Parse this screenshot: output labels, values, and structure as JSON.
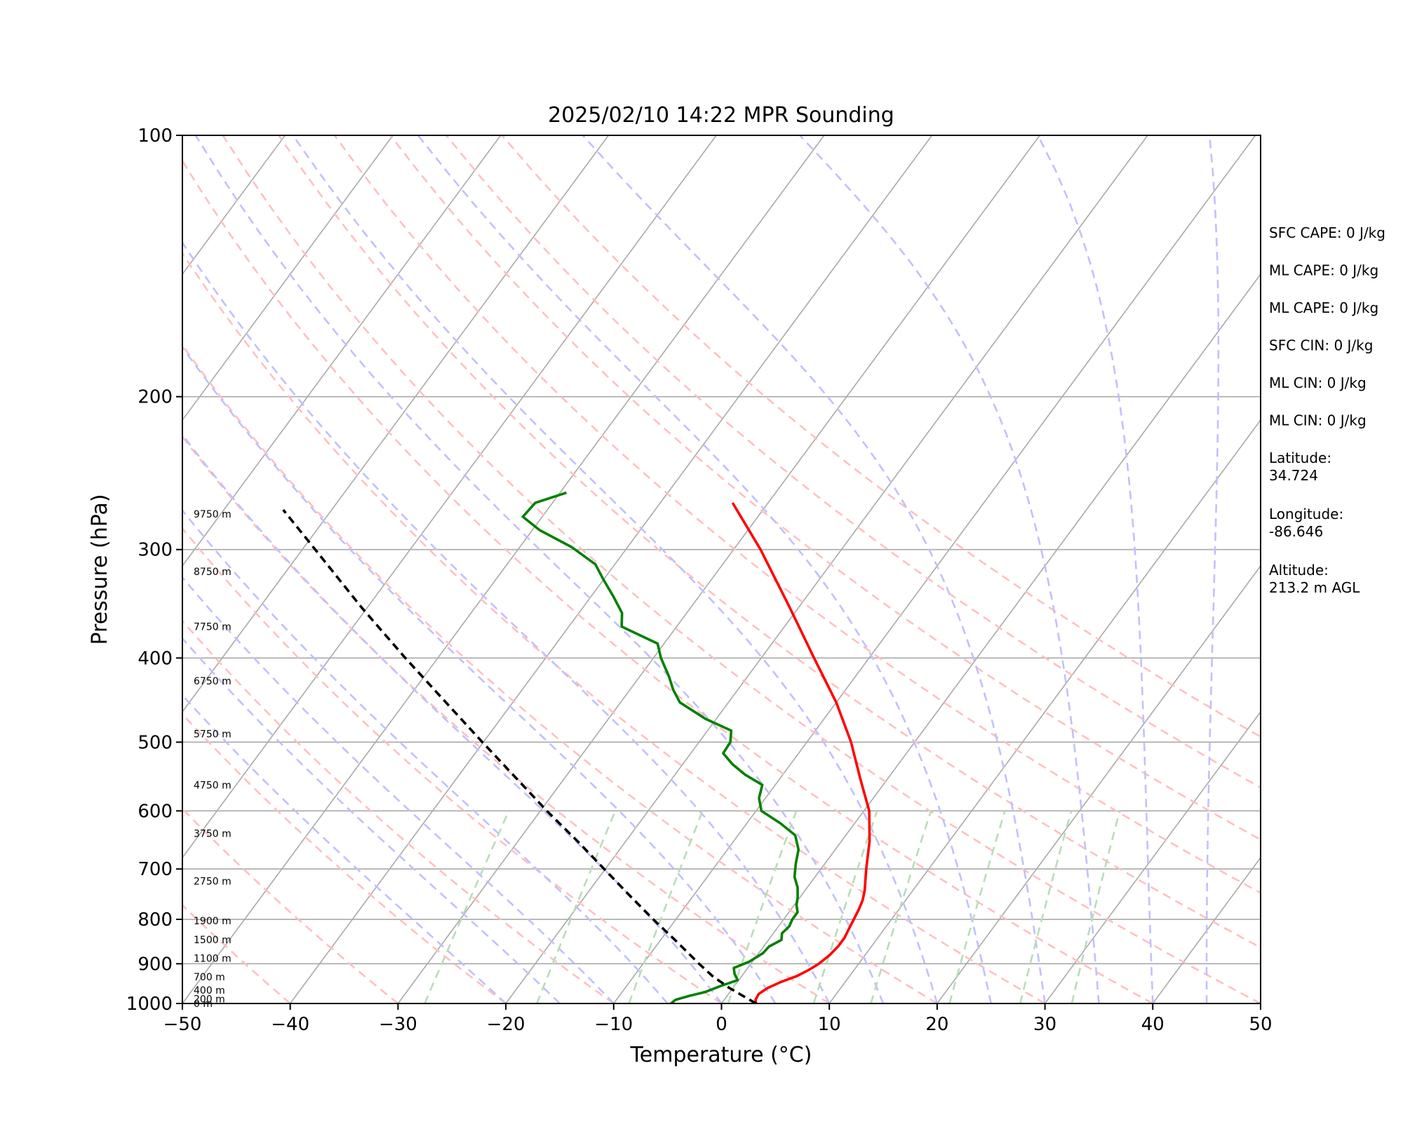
{
  "chart_data": {
    "type": "line",
    "title": "2025/02/10 14:22 MPR Sounding",
    "xlabel": "Temperature (°C)",
    "ylabel": "Pressure (hPa)",
    "xlim": [
      -50,
      50
    ],
    "ylim": [
      1000,
      100
    ],
    "y_scale": "log",
    "grid": true,
    "x_ticks": [
      -50,
      -40,
      -30,
      -20,
      -10,
      0,
      10,
      20,
      30,
      40,
      50
    ],
    "x_tick_labels": [
      "−50",
      "−40",
      "−30",
      "−20",
      "−10",
      "0",
      "10",
      "20",
      "30",
      "40",
      "50"
    ],
    "y_ticks": [
      1000,
      900,
      800,
      700,
      600,
      500,
      400,
      300,
      200,
      100
    ],
    "y_tick_labels": [
      "1000",
      "900",
      "800",
      "700",
      "600",
      "500",
      "400",
      "300",
      "200",
      "100"
    ],
    "series": [
      {
        "role": "temperature",
        "color": "#ff0000",
        "points": [
          {
            "p": 1000,
            "t": 3.2
          },
          {
            "p": 990,
            "t": 2.9
          },
          {
            "p": 975,
            "t": 2.8
          },
          {
            "p": 960,
            "t": 3.2
          },
          {
            "p": 945,
            "t": 4.0
          },
          {
            "p": 930,
            "t": 5.1
          },
          {
            "p": 915,
            "t": 5.8
          },
          {
            "p": 900,
            "t": 6.3
          },
          {
            "p": 880,
            "t": 6.7
          },
          {
            "p": 860,
            "t": 6.9
          },
          {
            "p": 840,
            "t": 6.9
          },
          {
            "p": 820,
            "t": 6.7
          },
          {
            "p": 800,
            "t": 6.5
          },
          {
            "p": 780,
            "t": 6.3
          },
          {
            "p": 760,
            "t": 6.0
          },
          {
            "p": 740,
            "t": 5.5
          },
          {
            "p": 700,
            "t": 4.2
          },
          {
            "p": 650,
            "t": 2.6
          },
          {
            "p": 600,
            "t": 0.5
          },
          {
            "p": 550,
            "t": -2.6
          },
          {
            "p": 500,
            "t": -5.9
          },
          {
            "p": 450,
            "t": -10.0
          },
          {
            "p": 400,
            "t": -15.1
          },
          {
            "p": 350,
            "t": -20.8
          },
          {
            "p": 300,
            "t": -27.5
          },
          {
            "p": 265,
            "t": -33.3
          }
        ]
      },
      {
        "role": "dewpoint",
        "color": "#008000",
        "points": [
          {
            "p": 1000,
            "t": -4.7
          },
          {
            "p": 990,
            "t": -4.5
          },
          {
            "p": 980,
            "t": -3.5
          },
          {
            "p": 970,
            "t": -2.3
          },
          {
            "p": 955,
            "t": -1.3
          },
          {
            "p": 940,
            "t": -0.1
          },
          {
            "p": 925,
            "t": -0.8
          },
          {
            "p": 910,
            "t": -1.3
          },
          {
            "p": 895,
            "t": -0.3
          },
          {
            "p": 875,
            "t": 0.4
          },
          {
            "p": 860,
            "t": 0.5
          },
          {
            "p": 845,
            "t": 1.2
          },
          {
            "p": 830,
            "t": 0.8
          },
          {
            "p": 815,
            "t": 1.0
          },
          {
            "p": 800,
            "t": 0.8
          },
          {
            "p": 785,
            "t": 0.8
          },
          {
            "p": 770,
            "t": 0.2
          },
          {
            "p": 755,
            "t": -0.2
          },
          {
            "p": 735,
            "t": -0.9
          },
          {
            "p": 715,
            "t": -1.9
          },
          {
            "p": 690,
            "t": -2.7
          },
          {
            "p": 665,
            "t": -3.4
          },
          {
            "p": 640,
            "t": -4.7
          },
          {
            "p": 620,
            "t": -6.9
          },
          {
            "p": 600,
            "t": -9.5
          },
          {
            "p": 580,
            "t": -10.6
          },
          {
            "p": 560,
            "t": -11.2
          },
          {
            "p": 545,
            "t": -13.5
          },
          {
            "p": 530,
            "t": -15.4
          },
          {
            "p": 515,
            "t": -17.0
          },
          {
            "p": 500,
            "t": -17.1
          },
          {
            "p": 485,
            "t": -17.8
          },
          {
            "p": 470,
            "t": -21.0
          },
          {
            "p": 450,
            "t": -24.5
          },
          {
            "p": 435,
            "t": -26.0
          },
          {
            "p": 420,
            "t": -27.3
          },
          {
            "p": 400,
            "t": -29.3
          },
          {
            "p": 385,
            "t": -30.6
          },
          {
            "p": 368,
            "t": -35.1
          },
          {
            "p": 355,
            "t": -36.0
          },
          {
            "p": 340,
            "t": -37.9
          },
          {
            "p": 325,
            "t": -40.0
          },
          {
            "p": 312,
            "t": -41.8
          },
          {
            "p": 298,
            "t": -45.2
          },
          {
            "p": 285,
            "t": -49.3
          },
          {
            "p": 275,
            "t": -51.8
          },
          {
            "p": 265,
            "t": -51.6
          },
          {
            "p": 258,
            "t": -49.4
          }
        ]
      },
      {
        "role": "parcel",
        "color": "#000000",
        "style": "dashed",
        "points": [
          {
            "p": 1000,
            "t": 3.2
          },
          {
            "p": 960,
            "t": -0.3
          },
          {
            "p": 930,
            "t": -2.7
          },
          {
            "p": 900,
            "t": -4.8
          },
          {
            "p": 850,
            "t": -8.3
          },
          {
            "p": 800,
            "t": -12.1
          },
          {
            "p": 750,
            "t": -16.0
          },
          {
            "p": 700,
            "t": -20.1
          },
          {
            "p": 650,
            "t": -24.5
          },
          {
            "p": 600,
            "t": -29.4
          },
          {
            "p": 550,
            "t": -34.5
          },
          {
            "p": 500,
            "t": -40.1
          },
          {
            "p": 450,
            "t": -46.2
          },
          {
            "p": 400,
            "t": -53.0
          },
          {
            "p": 350,
            "t": -60.5
          },
          {
            "p": 300,
            "t": -68.8
          },
          {
            "p": 270,
            "t": -74.5
          }
        ]
      }
    ],
    "height_labels": [
      {
        "text": "0 m",
        "p": 1000
      },
      {
        "text": "200 m",
        "p": 988
      },
      {
        "text": "400 m",
        "p": 965
      },
      {
        "text": "700 m",
        "p": 932
      },
      {
        "text": "1100 m",
        "p": 887
      },
      {
        "text": "1500 m",
        "p": 844
      },
      {
        "text": "1900 m",
        "p": 803
      },
      {
        "text": "2750 m",
        "p": 723
      },
      {
        "text": "3750 m",
        "p": 637
      },
      {
        "text": "4750 m",
        "p": 560
      },
      {
        "text": "5750 m",
        "p": 489
      },
      {
        "text": "6750 m",
        "p": 425
      },
      {
        "text": "7750 m",
        "p": 368
      },
      {
        "text": "8750 m",
        "p": 318
      },
      {
        "text": "9750 m",
        "p": 273
      }
    ],
    "dry_adiabats_theta_c": [
      -40,
      -30,
      -20,
      -10,
      0,
      10,
      20,
      30,
      40,
      50,
      60,
      70,
      80,
      90,
      100
    ],
    "moist_adiabats_c": [
      -20,
      -15,
      -10,
      -5,
      0,
      5,
      10,
      15,
      20,
      25,
      30,
      35,
      40,
      45
    ],
    "mixing_ratios_gkg": [
      0.4,
      1,
      2,
      4,
      7,
      10,
      16,
      24,
      32
    ],
    "isotherm_color": "#a9a9a9",
    "dry_adiabat_color": "#ffc0c0",
    "moist_adiabat_color": "#c0c0ff",
    "mixing_ratio_color": "#b8ddb8",
    "side_stats": [
      {
        "text": "SFC CAPE: 0 J/kg"
      },
      {
        "text": "ML CAPE: 0 J/kg"
      },
      {
        "text": "ML CAPE: 0 J/kg"
      },
      {
        "text": "SFC CIN: 0 J/kg"
      },
      {
        "text": "ML CIN: 0 J/kg"
      },
      {
        "text": "ML CIN: 0 J/kg"
      },
      {
        "text": "Latitude:",
        "value": "34.724"
      },
      {
        "text": "Longitude:",
        "value": "-86.646"
      },
      {
        "text": "Altitude:",
        "value": "213.2 m AGL"
      }
    ]
  }
}
